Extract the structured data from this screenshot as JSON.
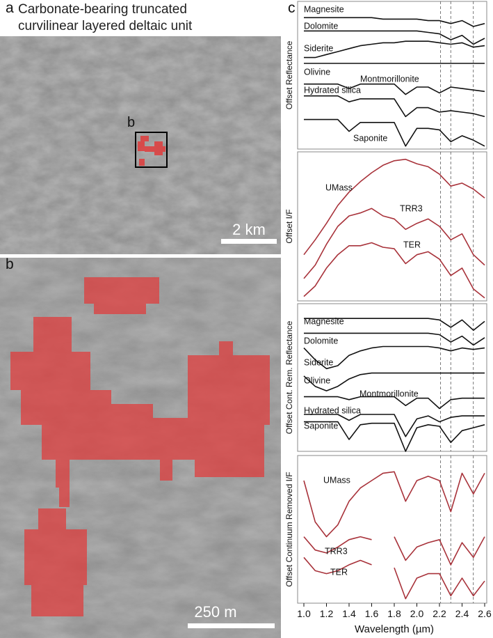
{
  "panel_a": {
    "label": "a",
    "title": "Carbonate-bearing truncated curvilinear layered deltaic unit",
    "inset_label": "b",
    "scale_bar": "2 km"
  },
  "panel_b": {
    "label": "b",
    "scale_bar": "250 m"
  },
  "panel_c": {
    "label": "c"
  },
  "chart_data": [
    {
      "type": "line",
      "ylabel": "Offset Reflectance",
      "xlim": [
        1.0,
        2.6
      ],
      "ylim": [
        0,
        100
      ],
      "reference_lines": [
        2.21,
        2.3,
        2.5
      ],
      "x": [
        1.0,
        1.1,
        1.2,
        1.3,
        1.4,
        1.5,
        1.6,
        1.7,
        1.8,
        1.9,
        2.0,
        2.1,
        2.2,
        2.3,
        2.4,
        2.5,
        2.6
      ],
      "series": [
        {
          "name": "Magnesite",
          "color": "#111111",
          "values": [
            89,
            89,
            89,
            89,
            89,
            89,
            89,
            88,
            88,
            88,
            88,
            87,
            87,
            85,
            87,
            83,
            85
          ]
        },
        {
          "name": "Dolomite",
          "color": "#111111",
          "values": [
            80,
            80,
            80,
            80,
            80,
            80,
            80,
            80,
            80,
            80,
            80,
            79,
            78,
            74,
            77,
            71,
            75
          ]
        },
        {
          "name": "Siderite",
          "color": "#111111",
          "values": [
            62,
            62,
            64,
            66,
            68,
            70,
            71,
            72,
            72,
            73,
            73,
            73,
            72,
            71,
            72,
            69,
            70
          ]
        },
        {
          "name": "Olivine",
          "color": "#111111",
          "values": [
            58,
            58,
            58,
            58,
            58,
            58,
            58,
            58,
            58,
            58,
            58,
            58,
            58,
            58,
            58,
            58,
            58
          ]
        },
        {
          "name": "Montmorillonite",
          "color": "#111111",
          "values": [
            44,
            44,
            44,
            44,
            41,
            44,
            44,
            44,
            44,
            37,
            42,
            42,
            38,
            42,
            41,
            40,
            39
          ]
        },
        {
          "name": "Hydrated silica",
          "color": "#111111",
          "values": [
            36,
            36,
            36,
            36,
            32,
            34,
            34,
            34,
            34,
            22,
            28,
            28,
            25,
            26,
            25,
            24,
            22
          ]
        },
        {
          "name": "Saponite",
          "color": "#111111",
          "values": [
            20,
            20,
            20,
            20,
            12,
            18,
            18,
            18,
            18,
            2,
            14,
            14,
            13,
            5,
            9,
            6,
            2
          ]
        }
      ]
    },
    {
      "type": "line",
      "ylabel": "Offset I/F",
      "xlim": [
        1.0,
        2.6
      ],
      "ylim": [
        0,
        100
      ],
      "reference_lines": [
        2.21,
        2.3,
        2.5
      ],
      "x": [
        1.0,
        1.1,
        1.2,
        1.3,
        1.4,
        1.5,
        1.6,
        1.7,
        1.8,
        1.9,
        2.0,
        2.1,
        2.2,
        2.3,
        2.4,
        2.5,
        2.6
      ],
      "series": [
        {
          "name": "UMass",
          "color": "#a8323a",
          "values": [
            31,
            41,
            52,
            64,
            73,
            80,
            86,
            91,
            94,
            95,
            92,
            90,
            85,
            77,
            79,
            75,
            69
          ]
        },
        {
          "name": "TRR3",
          "color": "#a8323a",
          "values": [
            15,
            24,
            38,
            50,
            57,
            59,
            62,
            57,
            55,
            48,
            52,
            55,
            50,
            41,
            45,
            31,
            24
          ]
        },
        {
          "name": "TER",
          "color": "#a8323a",
          "values": [
            3,
            10,
            22,
            31,
            37,
            37,
            39,
            36,
            35,
            25,
            31,
            33,
            28,
            17,
            22,
            8,
            2
          ]
        }
      ]
    },
    {
      "type": "line",
      "ylabel": "Offset Cont. Rem. Reflectance",
      "xlim": [
        1.0,
        2.6
      ],
      "ylim": [
        0,
        100
      ],
      "reference_lines": [
        2.21,
        2.3,
        2.5
      ],
      "x": [
        1.0,
        1.1,
        1.2,
        1.3,
        1.4,
        1.5,
        1.6,
        1.7,
        1.8,
        1.9,
        2.0,
        2.1,
        2.2,
        2.3,
        2.4,
        2.5,
        2.6
      ],
      "series": [
        {
          "name": "Magnesite",
          "color": "#111111",
          "values": [
            90,
            90,
            90,
            90,
            90,
            90,
            90,
            90,
            90,
            90,
            90,
            90,
            89,
            84,
            89,
            82,
            88
          ]
        },
        {
          "name": "Dolomite",
          "color": "#111111",
          "values": [
            80,
            80,
            80,
            80,
            80,
            80,
            80,
            80,
            80,
            80,
            80,
            80,
            79,
            74,
            78,
            72,
            77
          ]
        },
        {
          "name": "Siderite",
          "color": "#111111",
          "values": [
            70,
            62,
            56,
            58,
            65,
            68,
            70,
            71,
            71,
            71,
            71,
            71,
            70,
            68,
            70,
            69,
            70
          ]
        },
        {
          "name": "Olivine",
          "color": "#111111",
          "values": [
            51,
            44,
            41,
            44,
            49,
            52,
            53,
            53,
            53,
            53,
            53,
            53,
            53,
            53,
            53,
            53,
            53
          ]
        },
        {
          "name": "Montmorillonite",
          "color": "#111111",
          "values": [
            37,
            37,
            37,
            37,
            35,
            37,
            37,
            37,
            37,
            31,
            36,
            36,
            29,
            35,
            36,
            36,
            36
          ]
        },
        {
          "name": "Hydrated silica",
          "color": "#111111",
          "values": [
            25,
            25,
            25,
            25,
            21,
            25,
            25,
            25,
            25,
            10,
            22,
            24,
            20,
            23,
            24,
            24,
            24
          ]
        },
        {
          "name": "Saponite",
          "color": "#111111",
          "values": [
            20,
            20,
            20,
            20,
            8,
            18,
            19,
            19,
            19,
            0,
            16,
            18,
            17,
            6,
            14,
            16,
            18
          ]
        }
      ]
    },
    {
      "type": "line",
      "ylabel": "Offset Continuum Removed I/F",
      "xlabel": "Wavelength (µm)",
      "xlim": [
        1.0,
        2.6
      ],
      "ylim": [
        0,
        100
      ],
      "reference_lines": [
        2.21,
        2.3,
        2.5
      ],
      "xticks": [
        {
          "value": 1,
          "label": "1.0"
        },
        1.2,
        1.4,
        1.6,
        1.8,
        {
          "value": 2,
          "label": "2.0"
        },
        2.2,
        2.4,
        2.6
      ],
      "x": [
        1.0,
        1.1,
        1.2,
        1.3,
        1.4,
        1.5,
        1.6,
        1.7,
        1.8,
        1.9,
        2.0,
        2.1,
        2.2,
        2.3,
        2.4,
        2.5,
        2.6
      ],
      "series": [
        {
          "name": "UMass",
          "color": "#a8323a",
          "values": [
            83,
            55,
            45,
            53,
            69,
            78,
            83,
            88,
            89,
            69,
            83,
            86,
            83,
            62,
            88,
            74,
            88
          ]
        },
        {
          "name": "TRR3",
          "color": "#a8323a",
          "values": [
            45,
            36,
            34,
            38,
            43,
            45,
            43,
            null,
            45,
            29,
            38,
            41,
            43,
            26,
            41,
            31,
            45
          ]
        },
        {
          "name": "TER",
          "color": "#a8323a",
          "values": [
            31,
            22,
            20,
            22,
            26,
            29,
            26,
            null,
            24,
            3,
            17,
            20,
            20,
            5,
            17,
            5,
            15
          ]
        }
      ]
    }
  ]
}
